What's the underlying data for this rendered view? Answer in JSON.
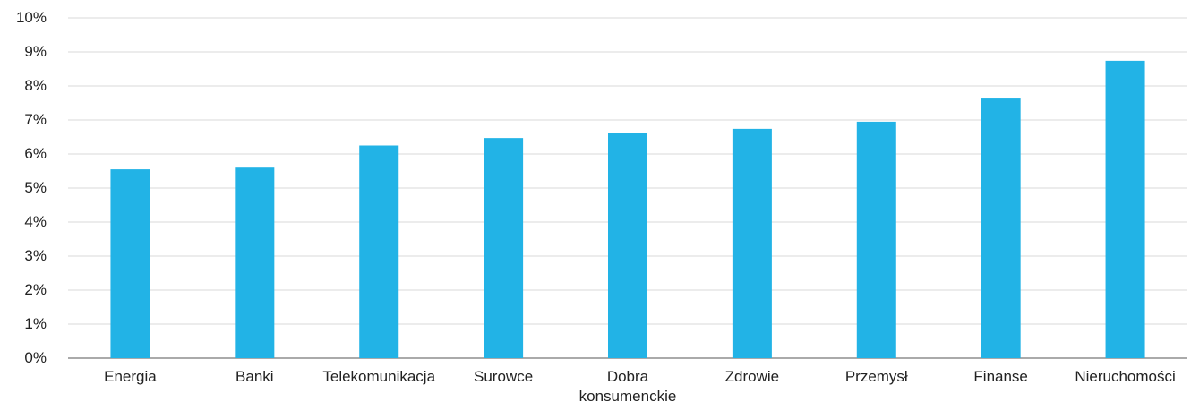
{
  "chart_data": {
    "type": "bar",
    "categories": [
      "Energia",
      "Banki",
      "Telekomunikacja",
      "Surowce",
      "Dobra konsumenckie",
      "Zdrowie",
      "Przemysł",
      "Finanse",
      "Nieruchomości"
    ],
    "values": [
      5.55,
      5.6,
      6.25,
      6.47,
      6.63,
      6.74,
      6.95,
      7.63,
      8.74
    ],
    "color": "#22b3e6",
    "ylim": [
      0,
      10
    ],
    "yticks": [
      {
        "value": 0,
        "label": "0%"
      },
      {
        "value": 1,
        "label": "1%"
      },
      {
        "value": 2,
        "label": "2%"
      },
      {
        "value": 3,
        "label": "3%"
      },
      {
        "value": 4,
        "label": "4%"
      },
      {
        "value": 5,
        "label": "5%"
      },
      {
        "value": 6,
        "label": "6%"
      },
      {
        "value": 7,
        "label": "7%"
      },
      {
        "value": 8,
        "label": "8%"
      },
      {
        "value": 9,
        "label": "9%"
      },
      {
        "value": 10,
        "label": "10%"
      }
    ],
    "grid": true
  }
}
